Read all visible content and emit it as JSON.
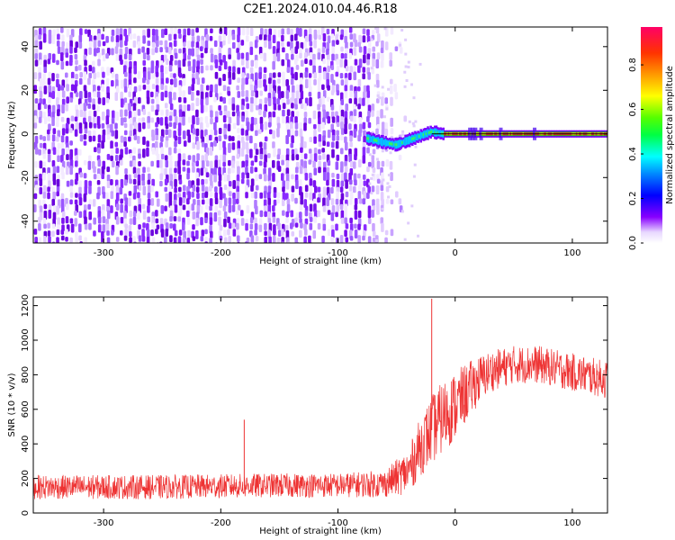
{
  "title": "C2E1.2024.010.04.46.R18",
  "chart_data": [
    {
      "type": "heatmap",
      "xlabel": "Height of straight line (km)",
      "ylabel": "Frequency (Hz)",
      "xlim": [
        -360,
        130
      ],
      "ylim": [
        -50,
        49
      ],
      "xticks": [
        -300,
        -200,
        -100,
        0,
        100
      ],
      "yticks": [
        -40,
        -20,
        0,
        20,
        40
      ],
      "xticklabels": [
        "-300",
        "-200",
        "-100",
        "0",
        "100"
      ],
      "yticklabels": [
        "-40",
        "-20",
        "0",
        "20",
        "40"
      ],
      "colorbar": {
        "label": "Normalized spectral amplitude",
        "range": [
          0,
          0.97
        ],
        "ticks": [
          0,
          0.2,
          0.4,
          0.6,
          0.8
        ],
        "ticklabels": [
          "0.0",
          "0.2",
          "0.4",
          "0.6",
          "0.8"
        ]
      },
      "noise_region": {
        "x_start": -360,
        "x_end": -75,
        "freq_range": [
          -50,
          49
        ],
        "amplitude_range": [
          0.0,
          0.15
        ]
      },
      "signal_track": [
        [
          -75,
          -2
        ],
        [
          -60,
          -4
        ],
        [
          -50,
          -5
        ],
        [
          -40,
          -3
        ],
        [
          -30,
          -1
        ],
        [
          -20,
          1
        ],
        [
          -10,
          0
        ],
        [
          0,
          0
        ],
        [
          50,
          0
        ],
        [
          130,
          0
        ]
      ],
      "signal_peak_amplitude": 0.92
    },
    {
      "type": "line",
      "xlabel": "Height of straight line (km)",
      "ylabel": "SNR (10 * v/v)",
      "xlim": [
        -360,
        130
      ],
      "ylim": [
        0,
        1250
      ],
      "xticks": [
        -300,
        -200,
        -100,
        0,
        100
      ],
      "yticks": [
        0,
        200,
        400,
        600,
        800,
        1000,
        1200
      ],
      "xticklabels": [
        "-300",
        "-200",
        "-100",
        "0",
        "100"
      ],
      "yticklabels": [
        "0",
        "200",
        "400",
        "600",
        "800",
        "1000",
        "1200"
      ],
      "color": "#ee3333",
      "series": [
        {
          "x": [
            -360,
            -300,
            -250,
            -200,
            -150,
            -100,
            -60,
            -40,
            -30,
            -20,
            -10,
            0,
            10,
            20,
            30,
            50,
            70,
            90,
            110,
            130
          ],
          "mean": [
            150,
            150,
            150,
            155,
            160,
            160,
            170,
            240,
            380,
            480,
            560,
            620,
            700,
            770,
            820,
            860,
            860,
            830,
            800,
            770
          ],
          "spread": [
            70,
            70,
            70,
            70,
            70,
            70,
            80,
            130,
            170,
            200,
            210,
            200,
            170,
            140,
            120,
            110,
            110,
            110,
            110,
            110
          ]
        }
      ],
      "spikes": [
        [
          -180,
          540
        ],
        [
          -20,
          1240
        ]
      ]
    }
  ]
}
